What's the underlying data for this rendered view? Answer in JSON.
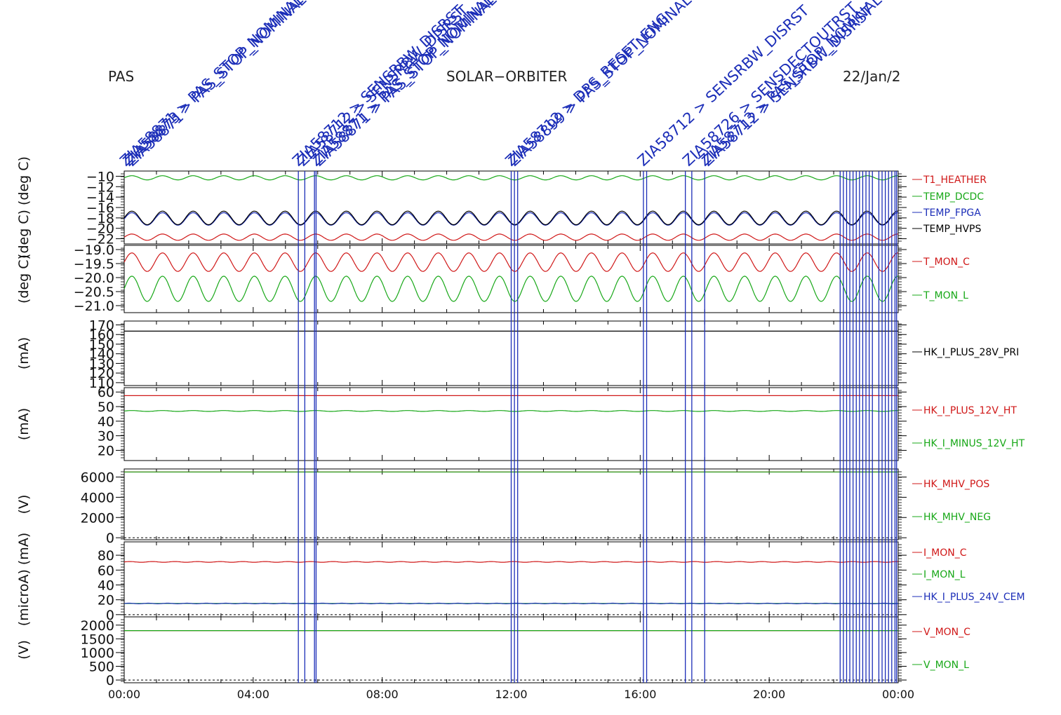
{
  "header": {
    "instrument": "PAS",
    "mission": "SOLAR−ORBITER",
    "date": "22/Jan/2"
  },
  "colors": {
    "red": "#d01818",
    "green": "#18a818",
    "blue": "#1c2eb8",
    "black": "#000000",
    "event_line": "#1c2eb8"
  },
  "event_labels": [
    "ZIA58871 > PAS_STOP_NOMINAL",
    "ZIA58873 > PAS_STOP_NOMINAL",
    "ZIA58871",
    "ZIA58712 > SENSRBW_DISRST",
    "ZIA58712 > SENSRBW_DISRST",
    "ZIA58871 > PAS_STOP_NOMINAL",
    "ZIA58871 > PAS_STOP_NOMINAL",
    "ZIA58712 > DPS_RESET_ENG",
    "ZIA58899 > PAS_STOP_NOMINAL",
    "ZIA58712 > SENSRBW_DISRST",
    "ZIA58726 > SENSDECTOUTRST",
    "ZIA58713 > PAS_STOP_NOMINAL",
    "ZIA58712 > SENSRBW_DISRST"
  ],
  "chart_data": {
    "type": "line",
    "x_ticks": [
      "00:00",
      "04:00",
      "08:00",
      "12:00",
      "16:00",
      "20:00",
      "00:00"
    ],
    "x_range_hours": [
      0,
      24
    ],
    "events_hours": [
      5.4,
      5.6,
      5.9,
      5.95,
      12.0,
      12.1,
      12.2,
      16.1,
      16.2,
      17.4,
      17.6,
      18.0,
      22.2,
      22.3,
      22.4,
      22.5,
      22.6,
      22.7,
      22.8,
      22.9,
      23.0,
      23.1,
      23.2,
      23.4,
      23.5,
      23.6,
      23.7,
      23.8,
      23.9,
      23.95
    ],
    "panels": [
      {
        "ylabel": "(deg C) (deg C)",
        "y_ticks": [
          "−10",
          "−12",
          "−14",
          "−16",
          "−18",
          "−20",
          "−22"
        ],
        "ylim": [
          -23,
          -9
        ],
        "series": [
          {
            "name": "T1_HEATHER",
            "color": "#d01818",
            "mean": -21.7,
            "amp": 0.6,
            "period": 0.95
          },
          {
            "name": "TEMP_DCDC",
            "color": "#18a818",
            "mean": -10.3,
            "amp": 0.4,
            "period": 0.95
          },
          {
            "name": "TEMP_FPGA",
            "color": "#1c2eb8",
            "mean": -18.2,
            "amp": 1.2,
            "period": 0.95
          },
          {
            "name": "TEMP_HVPS",
            "color": "#000000",
            "mean": -18.0,
            "amp": 1.3,
            "period": 0.95
          }
        ]
      },
      {
        "ylabel": "(deg C)",
        "y_ticks": [
          "−19.0",
          "−19.5",
          "−20.0",
          "−20.5",
          "−21.0"
        ],
        "ylim": [
          -21.25,
          -18.85
        ],
        "series": [
          {
            "name": "T_MON_C",
            "color": "#d01818",
            "mean": -19.45,
            "amp": 0.33,
            "period": 0.95
          },
          {
            "name": "T_MON_L",
            "color": "#18a818",
            "mean": -20.4,
            "amp": 0.45,
            "period": 0.95
          }
        ]
      },
      {
        "ylabel": "(mA)",
        "y_ticks": [
          "170",
          "160",
          "150",
          "140",
          "130",
          "120",
          "110"
        ],
        "ylim": [
          107,
          174
        ],
        "series": [
          {
            "name": "HK_I_PLUS_28V_PRI",
            "color": "#000000",
            "mean": 163.5,
            "amp": 0,
            "period": 1
          }
        ]
      },
      {
        "ylabel": "(mA)",
        "y_ticks": [
          "60",
          "50",
          "40",
          "30",
          "20"
        ],
        "ylim": [
          13,
          63
        ],
        "series": [
          {
            "name": "HK_I_PLUS_12V_HT",
            "color": "#d01818",
            "mean": 57.5,
            "amp": 0,
            "period": 1
          },
          {
            "name": "HK_I_MINUS_12V_HT",
            "color": "#18a818",
            "mean": 47,
            "amp": 0.3,
            "period": 0.95
          }
        ]
      },
      {
        "ylabel": "(V)",
        "y_ticks": [
          "6000",
          "4000",
          "2000",
          "0"
        ],
        "ylim": [
          -200,
          6800
        ],
        "zero_line": true,
        "series": [
          {
            "name": "HK_MHV_POS",
            "color": "#d01818",
            "mean": 6500,
            "amp": 0,
            "period": 1
          },
          {
            "name": "HK_MHV_NEG",
            "color": "#18a818",
            "mean": 6500,
            "amp": 0,
            "period": 1
          }
        ]
      },
      {
        "ylabel": "(microA) (mA)",
        "y_ticks": [
          "80",
          "60",
          "40",
          "20",
          "0"
        ],
        "ylim": [
          -3,
          98
        ],
        "zero_line": true,
        "series": [
          {
            "name": "I_MON_C",
            "color": "#d01818",
            "mean": 71,
            "amp": 0.5,
            "period": 0.7
          },
          {
            "name": "I_MON_L",
            "color": "#18a818",
            "mean": 15,
            "amp": 0,
            "period": 1
          },
          {
            "name": "HK_I_PLUS_24V_CEM",
            "color": "#1c2eb8",
            "mean": 15,
            "amp": 0.4,
            "period": 0.6
          }
        ]
      },
      {
        "ylabel": "(V)",
        "y_ticks": [
          "2000",
          "1500",
          "1000",
          "500",
          "0"
        ],
        "ylim": [
          -100,
          2300
        ],
        "zero_line": true,
        "series": [
          {
            "name": "V_MON_C",
            "color": "#d01818",
            "mean": 1800,
            "amp": 0,
            "period": 1
          },
          {
            "name": "V_MON_L",
            "color": "#18a818",
            "mean": 1800,
            "amp": 0,
            "period": 1
          }
        ]
      }
    ]
  }
}
